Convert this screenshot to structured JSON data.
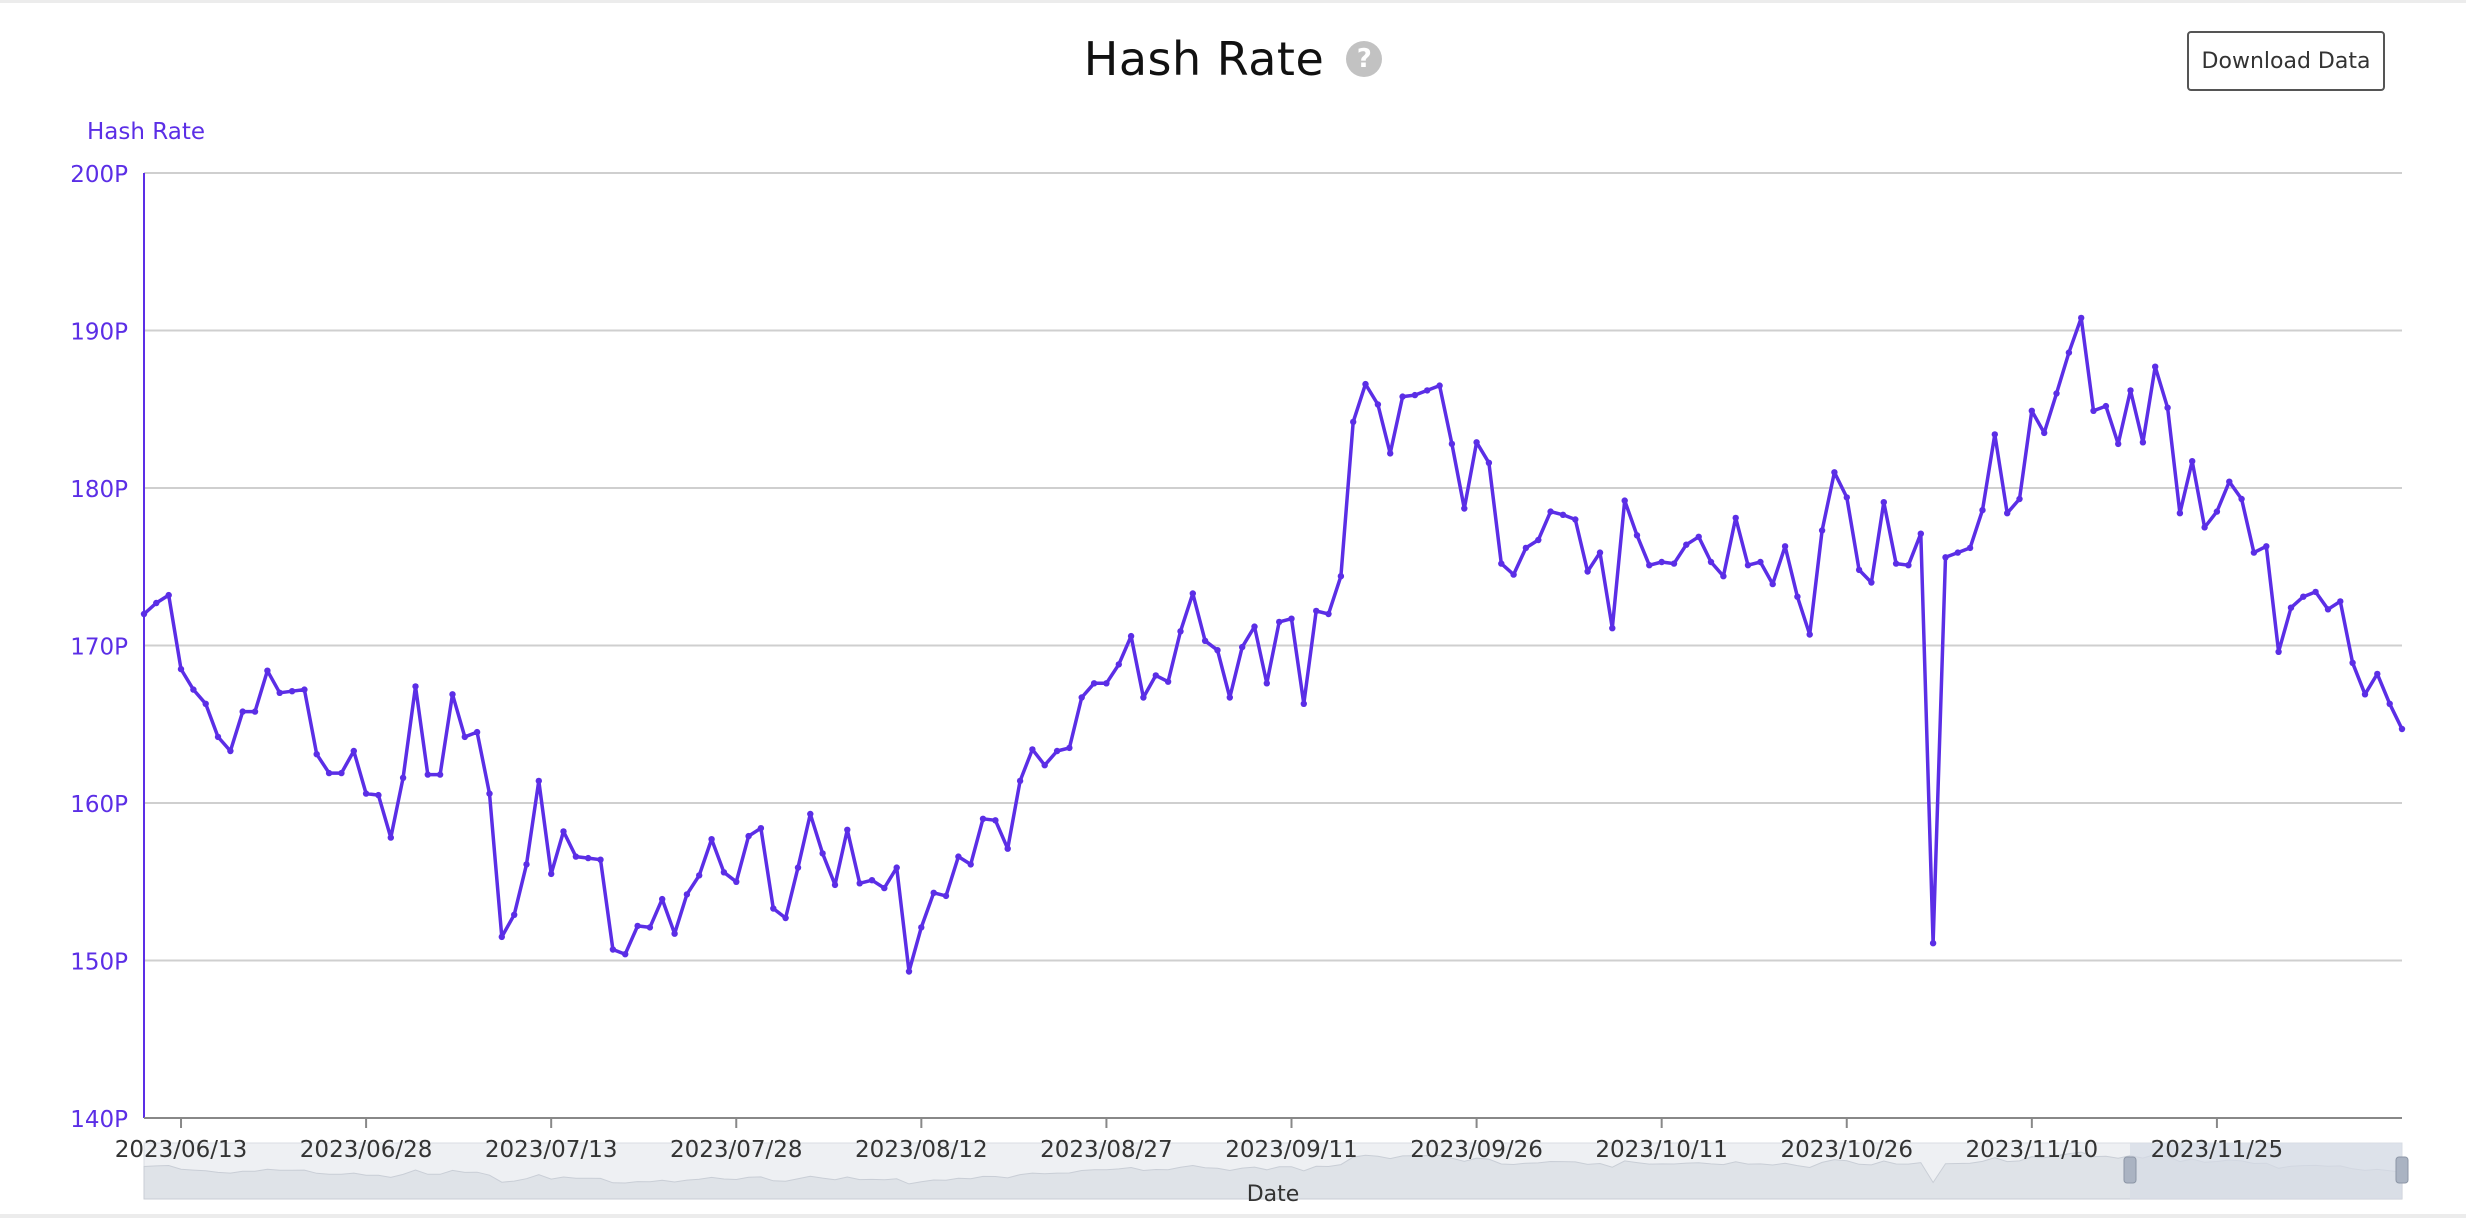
{
  "header": {
    "title": "Hash Rate",
    "help_icon": "question-circle-icon",
    "download_label": "Download Data"
  },
  "colors": {
    "series": "#5b2ee6",
    "grid": "#cfcfcf",
    "axis_text": "#5b2ee6",
    "xaxis_text": "#333333",
    "zoom_fill": "#eef0f3",
    "zoom_selected": "#d5dbe5"
  },
  "chart_data": {
    "type": "line",
    "title": "Hash Rate",
    "ylabel": "Hash Rate",
    "xlabel": "Date",
    "ylim": [
      140,
      200
    ],
    "y_unit_suffix": "P",
    "y_ticks": [
      "140P",
      "150P",
      "160P",
      "170P",
      "180P",
      "190P",
      "200P"
    ],
    "x_ticks": [
      "2023/06/13",
      "2023/06/28",
      "2023/07/13",
      "2023/07/28",
      "2023/08/12",
      "2023/08/27",
      "2023/09/11",
      "2023/09/26",
      "2023/10/11",
      "2023/10/26",
      "2023/11/10",
      "2023/11/25"
    ],
    "x_start": "2023/06/10",
    "grid": true,
    "series": [
      {
        "name": "Hash Rate",
        "values": [
          172.0,
          172.7,
          173.2,
          168.5,
          167.2,
          166.3,
          164.2,
          163.3,
          165.8,
          165.8,
          168.4,
          167.0,
          167.1,
          167.2,
          163.1,
          161.9,
          161.9,
          163.3,
          160.6,
          160.5,
          157.8,
          161.6,
          167.4,
          161.8,
          161.8,
          166.9,
          164.2,
          164.5,
          160.6,
          151.5,
          152.9,
          156.1,
          161.4,
          155.5,
          158.2,
          156.6,
          156.5,
          156.4,
          150.7,
          150.4,
          152.2,
          152.1,
          153.9,
          151.7,
          154.2,
          155.4,
          157.7,
          155.6,
          155.0,
          157.9,
          158.4,
          153.3,
          152.7,
          155.9,
          159.3,
          156.8,
          154.8,
          158.3,
          154.9,
          155.1,
          154.6,
          155.9,
          149.3,
          152.1,
          154.3,
          154.1,
          156.6,
          156.1,
          159.0,
          158.9,
          157.1,
          161.4,
          163.4,
          162.4,
          163.3,
          163.5,
          166.7,
          167.6,
          167.6,
          168.8,
          170.6,
          166.7,
          168.1,
          167.7,
          170.9,
          173.3,
          170.3,
          169.7,
          166.7,
          169.9,
          171.2,
          167.6,
          171.5,
          171.7,
          166.3,
          172.2,
          172.0,
          174.4,
          184.2,
          186.6,
          185.3,
          182.2,
          185.8,
          185.9,
          186.2,
          186.5,
          182.8,
          178.7,
          182.9,
          181.6,
          175.2,
          174.5,
          176.2,
          176.7,
          178.5,
          178.3,
          178.0,
          174.7,
          175.9,
          171.1,
          179.2,
          177.0,
          175.1,
          175.3,
          175.2,
          176.4,
          176.9,
          175.3,
          174.4,
          178.1,
          175.1,
          175.3,
          173.9,
          176.3,
          173.1,
          170.7,
          177.3,
          181.0,
          179.4,
          174.8,
          174.0,
          179.1,
          175.2,
          175.1,
          177.1,
          151.1,
          175.6,
          175.9,
          176.2,
          178.6,
          183.4,
          178.4,
          179.3,
          184.9,
          183.5,
          186.0,
          188.6,
          190.8,
          184.9,
          185.2,
          182.8,
          186.2,
          182.9,
          187.7,
          185.1,
          178.4,
          181.7,
          177.5,
          178.5,
          180.4,
          179.3,
          175.9,
          176.3,
          169.6,
          172.4,
          173.1,
          173.4,
          172.3,
          172.8,
          168.9,
          166.9,
          168.2,
          166.3,
          164.7
        ]
      }
    ]
  }
}
